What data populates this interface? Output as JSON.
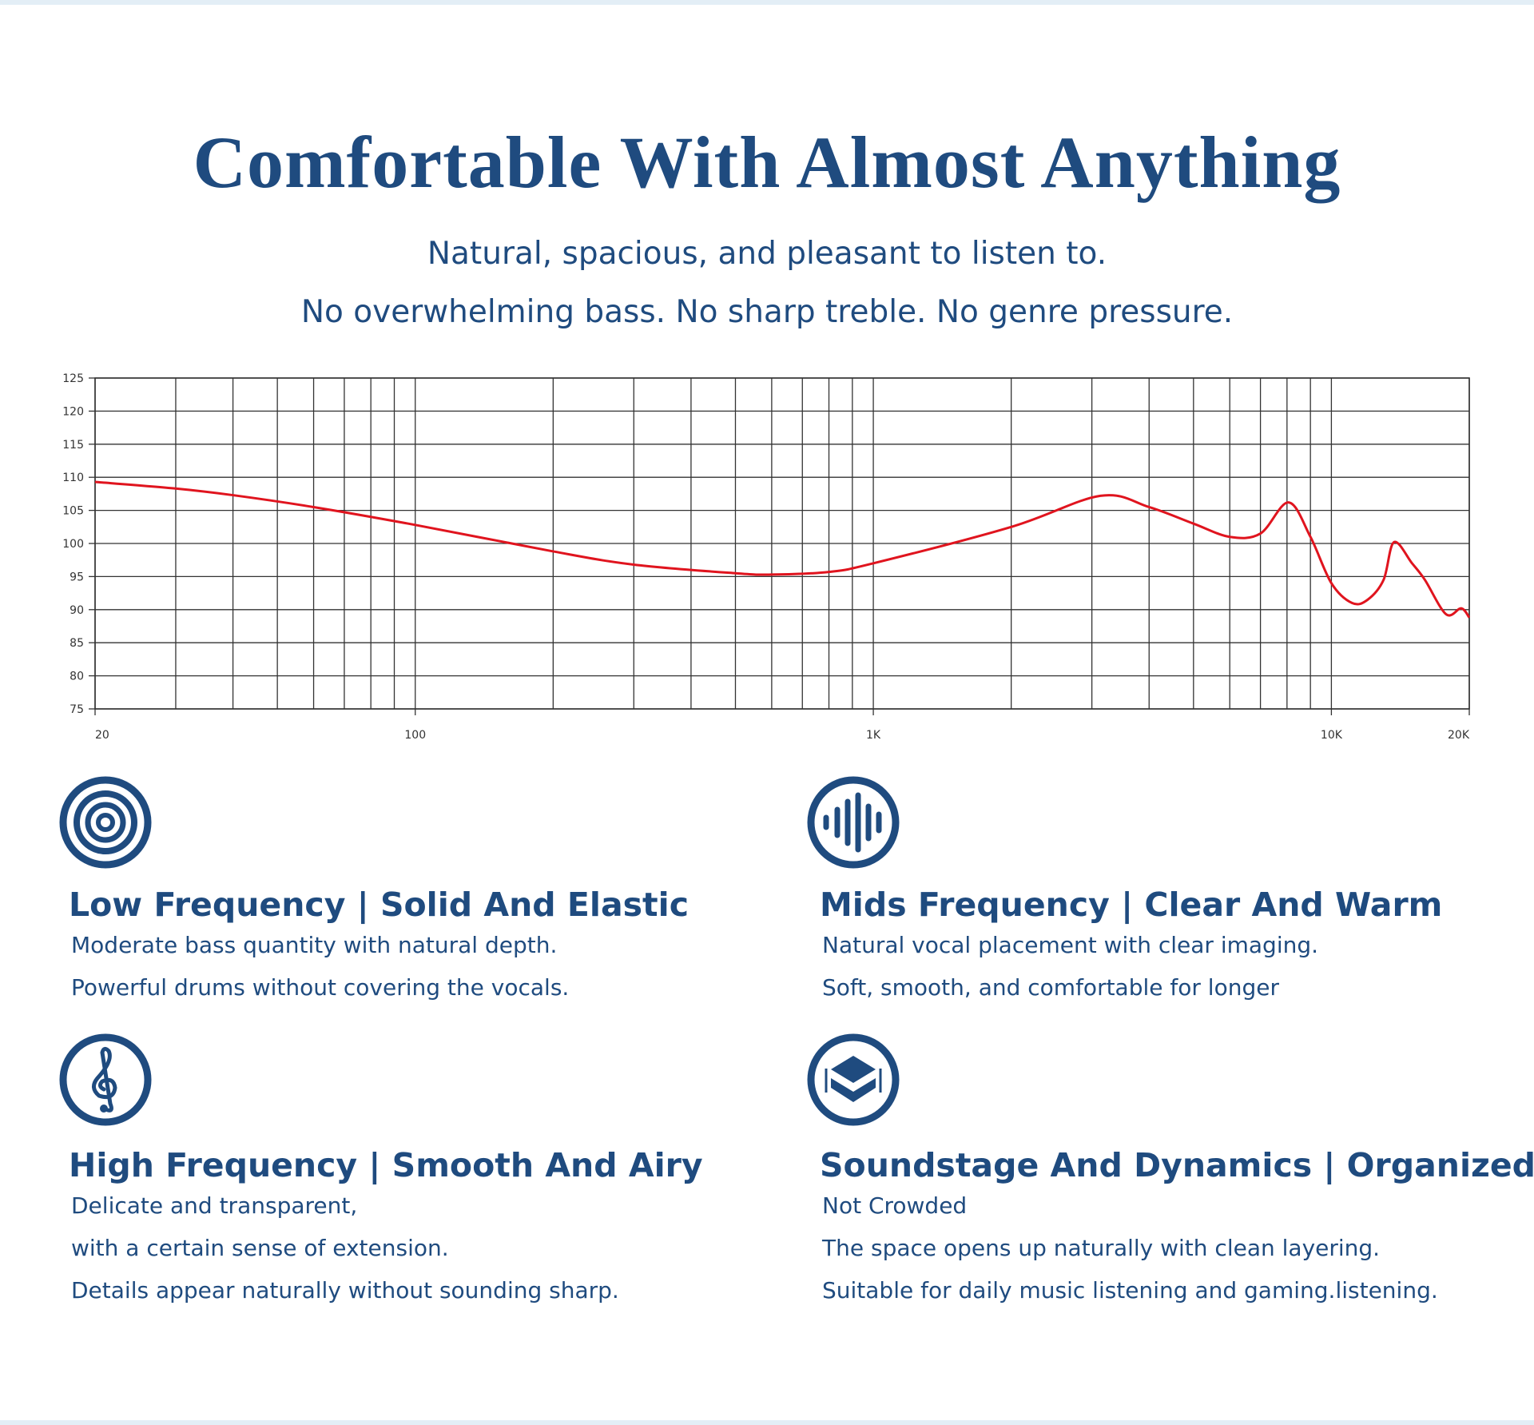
{
  "header": {
    "title": "Comfortable With Almost Anything",
    "subtitle": [
      "Natural, spacious, and pleasant to listen to.",
      "No overwhelming bass. No sharp treble. No genre pressure."
    ]
  },
  "chart_data": {
    "type": "line",
    "log_x": true,
    "grid": true,
    "color": "#e0141e",
    "x": [
      20,
      30,
      40,
      60,
      100,
      200,
      300,
      500,
      600,
      800,
      1000,
      2000,
      3130,
      4000,
      5000,
      6000,
      7000,
      8060,
      9000,
      10000,
      11100,
      12000,
      13000,
      13700,
      15000,
      16000,
      17800,
      19200,
      20000
    ],
    "values": [
      109.3,
      108.3,
      107.3,
      105.5,
      102.8,
      98.8,
      96.8,
      95.5,
      95.3,
      95.7,
      97,
      102.5,
      107.2,
      105.5,
      103,
      101,
      101.5,
      106.2,
      101,
      94,
      91,
      91.5,
      94.5,
      100.2,
      97,
      94.5,
      89.3,
      90.2,
      88.8
    ],
    "xlim": [
      20,
      20000
    ],
    "ylim": [
      75,
      125
    ],
    "xticks": [
      20,
      100,
      {
        "value": 1000,
        "label": "1K"
      },
      {
        "value": 10000,
        "label": "10K"
      },
      {
        "value": 20000,
        "label": "20K"
      }
    ],
    "xgrid_minor": [
      30,
      40,
      50,
      60,
      70,
      80,
      90,
      200,
      300,
      400,
      500,
      600,
      700,
      800,
      900,
      2000,
      3000,
      4000,
      5000,
      6000,
      7000,
      8000,
      9000
    ],
    "yticks": [
      75,
      80,
      85,
      90,
      95,
      100,
      105,
      110,
      115,
      120,
      125
    ]
  },
  "features": [
    {
      "title": "Low Frequency | Solid And Elastic",
      "lines": [
        "Moderate bass quantity with natural depth.",
        "Powerful drums without covering the vocals."
      ]
    },
    {
      "title": "Mids Frequency | Clear And Warm",
      "lines": [
        "Natural vocal placement with clear imaging.",
        "Soft, smooth, and comfortable for longer"
      ]
    },
    {
      "title": "High Frequency | Smooth And Airy",
      "lines": [
        "Delicate and transparent,",
        "with a certain sense of extension.",
        "Details appear naturally without sounding sharp."
      ]
    },
    {
      "title": "Soundstage And Dynamics | Organized",
      "lines": [
        "Not Crowded",
        "The space opens up naturally with clean layering.",
        "Suitable for daily music listening and gaming.listening."
      ]
    }
  ]
}
